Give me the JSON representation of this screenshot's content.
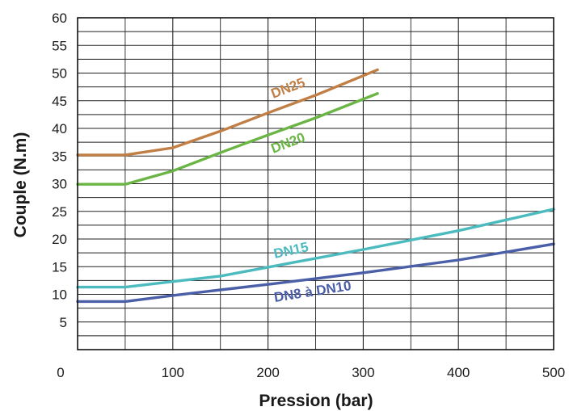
{
  "chart_data": {
    "type": "line",
    "title": "",
    "xlabel": "Pression (bar)",
    "ylabel": "Couple (N.m)",
    "xlim": [
      0,
      500
    ],
    "ylim": [
      0,
      60
    ],
    "x_ticks": [
      "0",
      "100",
      "200",
      "300",
      "400",
      "500"
    ],
    "y_ticks": [
      "5",
      "10",
      "15",
      "20",
      "25",
      "30",
      "35",
      "40",
      "45",
      "50",
      "55",
      "60"
    ],
    "grid": true,
    "series": [
      {
        "name": "DN25",
        "color": "#c17f45",
        "points": [
          [
            0,
            35.2
          ],
          [
            50,
            35.2
          ],
          [
            100,
            36.5
          ],
          [
            150,
            39.5
          ],
          [
            200,
            42.8
          ],
          [
            250,
            46.0
          ],
          [
            315,
            50.6
          ]
        ]
      },
      {
        "name": "DN20",
        "color": "#6ab544",
        "points": [
          [
            0,
            29.9
          ],
          [
            50,
            29.9
          ],
          [
            100,
            32.3
          ],
          [
            150,
            35.6
          ],
          [
            200,
            38.8
          ],
          [
            250,
            41.9
          ],
          [
            315,
            46.3
          ]
        ]
      },
      {
        "name": "DN15",
        "color": "#4bbbbf",
        "points": [
          [
            0,
            11.3
          ],
          [
            50,
            11.3
          ],
          [
            100,
            12.3
          ],
          [
            150,
            13.3
          ],
          [
            200,
            14.9
          ],
          [
            300,
            18.1
          ],
          [
            400,
            21.5
          ],
          [
            500,
            25.4
          ]
        ]
      },
      {
        "name": "DN8 à DN10",
        "color": "#4a5fa8",
        "points": [
          [
            0,
            8.7
          ],
          [
            50,
            8.7
          ],
          [
            100,
            9.8
          ],
          [
            150,
            10.8
          ],
          [
            200,
            11.8
          ],
          [
            300,
            13.9
          ],
          [
            400,
            16.2
          ],
          [
            500,
            19.1
          ]
        ]
      }
    ]
  }
}
